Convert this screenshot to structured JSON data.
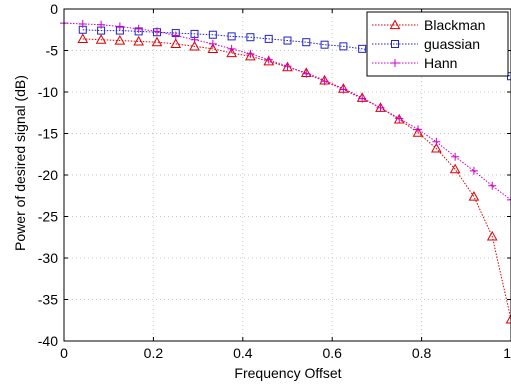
{
  "chart_data": {
    "type": "line",
    "xlabel": "Frequency Offset",
    "ylabel": "Power of desired signal (dB)",
    "xlim": [
      0,
      1
    ],
    "ylim": [
      -40,
      0
    ],
    "xticks": [
      0,
      0.2,
      0.4,
      0.6,
      0.8,
      1
    ],
    "xtick_labels": [
      "0",
      "0.2",
      "0.4",
      "0.6",
      "0.8",
      "1"
    ],
    "yticks": [
      0,
      -5,
      -10,
      -15,
      -20,
      -25,
      -30,
      -35,
      -40
    ],
    "ytick_labels": [
      "0",
      "-5",
      "-10",
      "-15",
      "-20",
      "-25",
      "-30",
      "-35",
      "-40"
    ],
    "grid": true,
    "legend_position": "top-right",
    "series": [
      {
        "name": "Blackman",
        "color": "#dd0000",
        "marker": "triangle",
        "line": "dotted",
        "x": [
          0.042,
          0.083,
          0.125,
          0.167,
          0.208,
          0.25,
          0.292,
          0.333,
          0.375,
          0.417,
          0.458,
          0.5,
          0.542,
          0.583,
          0.625,
          0.667,
          0.708,
          0.75,
          0.792,
          0.833,
          0.875,
          0.917,
          0.958,
          1.0
        ],
        "values": [
          -3.6,
          -3.7,
          -3.8,
          -3.9,
          -4.0,
          -4.2,
          -4.5,
          -4.8,
          -5.3,
          -5.7,
          -6.3,
          -7.0,
          -7.7,
          -8.6,
          -9.6,
          -10.7,
          -11.9,
          -13.3,
          -14.9,
          -16.8,
          -19.3,
          -22.6,
          -27.4,
          -37.4
        ]
      },
      {
        "name": "guassian",
        "color": "#2222cc",
        "marker": "square",
        "line": "dotted",
        "x": [
          0.042,
          0.083,
          0.125,
          0.167,
          0.208,
          0.25,
          0.292,
          0.333,
          0.375,
          0.417,
          0.458,
          0.5,
          0.542,
          0.583,
          0.625,
          0.667,
          0.708,
          0.75,
          0.792,
          0.833,
          0.875,
          0.917,
          0.958,
          1.0
        ],
        "values": [
          -2.5,
          -2.6,
          -2.6,
          -2.7,
          -2.8,
          -2.9,
          -3.0,
          -3.1,
          -3.3,
          -3.4,
          -3.6,
          -3.8,
          -4.0,
          -4.3,
          -4.5,
          -4.8,
          -5.1,
          -5.4,
          -5.8,
          -6.1,
          -6.5,
          -7.0,
          -7.5,
          -8.1
        ]
      },
      {
        "name": "Hann",
        "color": "#cc00cc",
        "marker": "plus",
        "line": "dotted",
        "x": [
          0.0,
          0.042,
          0.083,
          0.125,
          0.167,
          0.208,
          0.25,
          0.292,
          0.333,
          0.375,
          0.417,
          0.458,
          0.5,
          0.542,
          0.583,
          0.625,
          0.667,
          0.708,
          0.75,
          0.792,
          0.833,
          0.875,
          0.917,
          0.958,
          1.0
        ],
        "values": [
          -1.7,
          -1.8,
          -1.9,
          -2.1,
          -2.4,
          -2.7,
          -3.2,
          -3.7,
          -4.2,
          -4.8,
          -5.4,
          -6.1,
          -6.9,
          -7.8,
          -8.7,
          -9.7,
          -10.8,
          -11.9,
          -13.2,
          -14.5,
          -16.0,
          -17.8,
          -19.5,
          -21.3,
          -23.0
        ]
      }
    ]
  }
}
